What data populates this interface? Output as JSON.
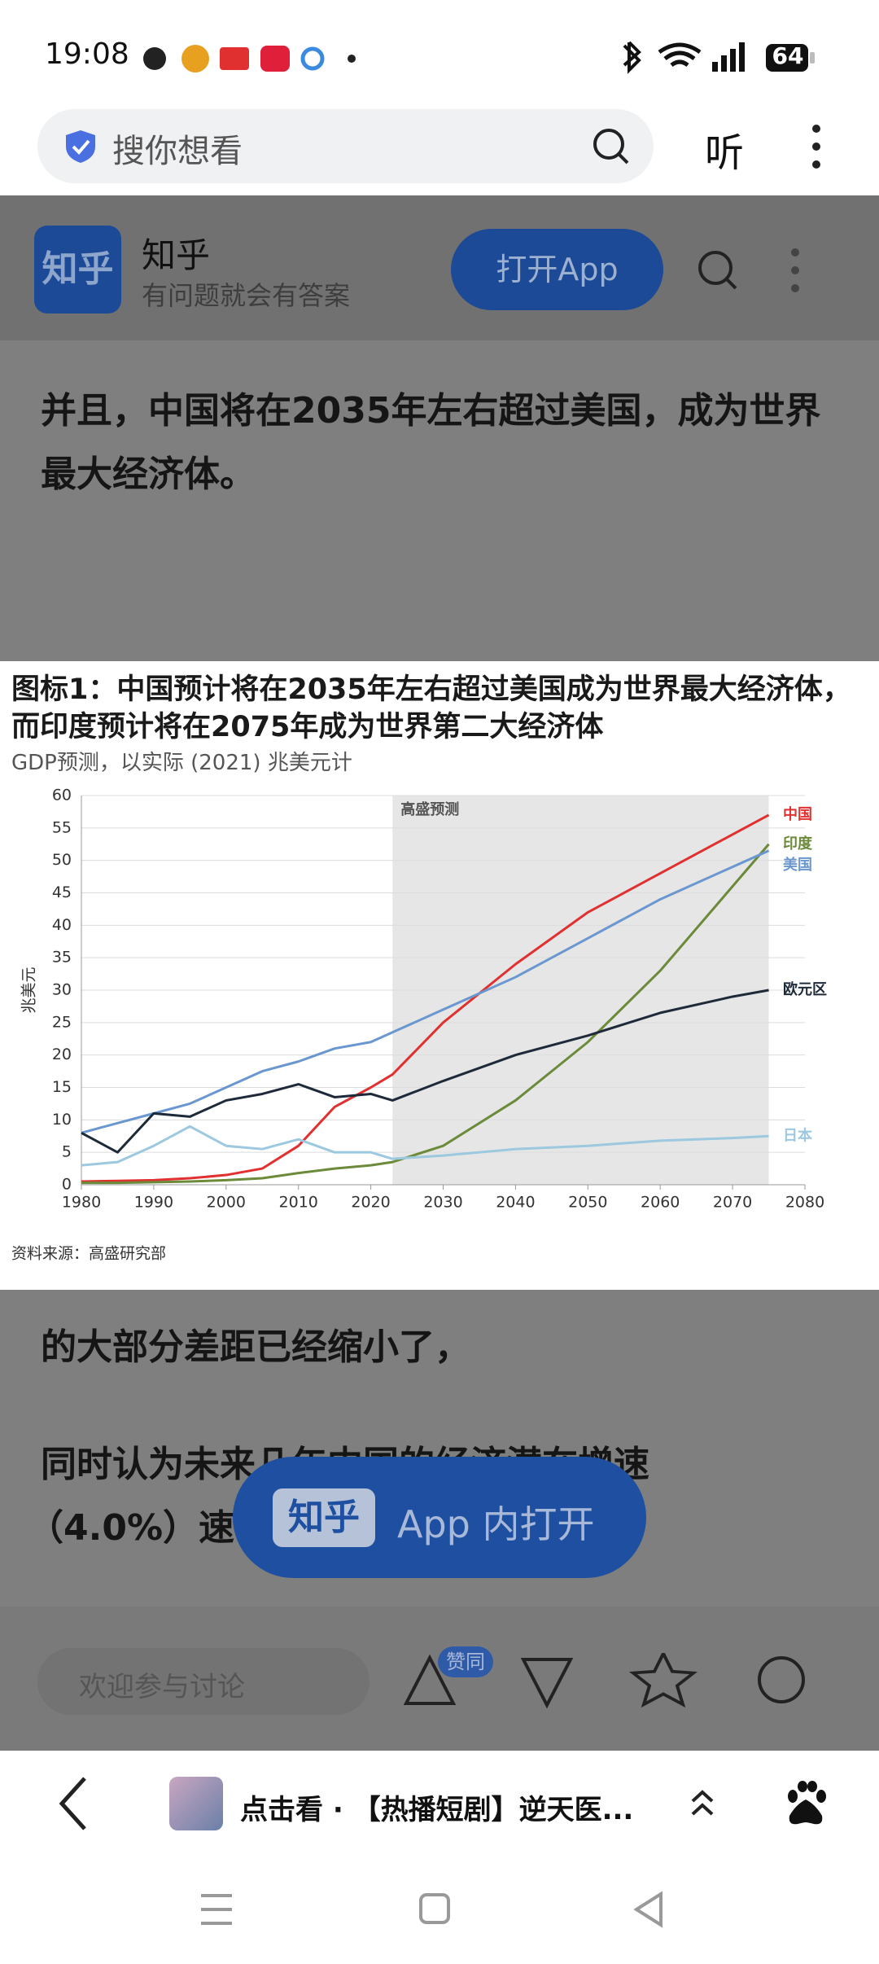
{
  "status_bar": {
    "time": "19:08",
    "battery": "64"
  },
  "search_bar": {
    "placeholder": "搜你想看",
    "listen": "听"
  },
  "header": {
    "logo": "知乎",
    "name": "知乎",
    "tagline": "有问题就会有答案",
    "open_button": "打开App"
  },
  "article": {
    "paragraph_1": "并且，中国将在2035年左右超过美国，成为世界最大经济体。",
    "paragraph_2": "的大部分差距已经缩小了，",
    "paragraph_3_line_1": "同时认为未来几年中国的经济潜在增速",
    "paragraph_3_line_2": "（4.0%）速"
  },
  "chart_data": {
    "type": "line",
    "title": "图标1：中国预计将在2035年左右超过美国成为世界最大经济体，而印度预计将在2075年成为世界第二大经济体",
    "subtitle": "GDP预测，以实际 (2021) 兆美元计",
    "y_label": "兆美元",
    "annotation": "高盛预测",
    "source": "资料来源：高盛研究部",
    "forecast_span": [
      2023,
      2075
    ],
    "x": [
      1980,
      1985,
      1990,
      1995,
      2000,
      2005,
      2010,
      2015,
      2020,
      2023,
      2030,
      2040,
      2050,
      2060,
      2070,
      2075
    ],
    "xlim": [
      1980,
      2080
    ],
    "xticks": [
      1980,
      1990,
      2000,
      2010,
      2020,
      2030,
      2040,
      2050,
      2060,
      2070,
      2080
    ],
    "ylim": [
      0,
      60
    ],
    "yticks": [
      0,
      5,
      10,
      15,
      20,
      25,
      30,
      35,
      40,
      45,
      50,
      55,
      60
    ],
    "grid": true,
    "series": [
      {
        "name": "中国",
        "color": "#e03030",
        "values": [
          0.5,
          0.6,
          0.7,
          1,
          1.5,
          2.5,
          6,
          12,
          15,
          17,
          25,
          34,
          42,
          48,
          54,
          57
        ]
      },
      {
        "name": "印度",
        "color": "#6b8a3a",
        "values": [
          0.3,
          0.3,
          0.4,
          0.5,
          0.7,
          1,
          1.8,
          2.5,
          3,
          3.5,
          6,
          13,
          22,
          33,
          46,
          52.5
        ]
      },
      {
        "name": "美国",
        "color": "#6a97d0",
        "values": [
          8,
          9.5,
          11,
          12.5,
          15,
          17.5,
          19,
          21,
          22,
          23.5,
          27,
          32,
          38,
          44,
          49,
          51.5
        ]
      },
      {
        "name": "欧元区",
        "color": "#1e2a3a",
        "values": [
          8,
          5,
          11,
          10.5,
          13,
          14,
          15.5,
          13.5,
          14,
          13,
          16,
          20,
          23,
          26.5,
          29,
          30
        ]
      },
      {
        "name": "日本",
        "color": "#9cc8e0",
        "values": [
          3,
          3.5,
          6,
          9,
          6,
          5.5,
          7,
          5,
          5,
          4,
          4.5,
          5.5,
          6,
          6.8,
          7.2,
          7.5
        ]
      }
    ]
  },
  "float_button": {
    "logo": "知乎",
    "text": "App 内打开"
  },
  "comment_bar": {
    "placeholder": "欢迎参与讨论",
    "upvote_badge": "赞同"
  },
  "bottom_bar": {
    "promo": "点击看 · 【热播短剧】逆天医..."
  }
}
